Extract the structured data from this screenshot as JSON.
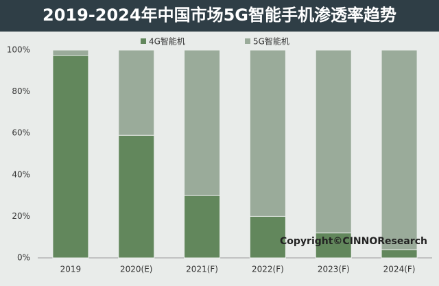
{
  "chart_data": {
    "type": "stacked-bar",
    "title": "2019-2024年中国市场5G智能手机渗透率趋势",
    "categories": [
      "2019",
      "2020(E)",
      "2021(F)",
      "2022(F)",
      "2023(F)",
      "2024(F)"
    ],
    "series": [
      {
        "name": "4G智能机",
        "color": "#62875c",
        "values": [
          97.5,
          59,
          30,
          20,
          12,
          4
        ]
      },
      {
        "name": "5G智能机",
        "color": "#9aab9a",
        "values": [
          2.5,
          41,
          70,
          80,
          88,
          96
        ]
      }
    ],
    "ylim": [
      0,
      100
    ],
    "yticks": [
      {
        "value": 0,
        "label": "0%"
      },
      {
        "value": 20,
        "label": "20%"
      },
      {
        "value": 40,
        "label": "40%"
      },
      {
        "value": 60,
        "label": "60%"
      },
      {
        "value": 80,
        "label": "80%"
      },
      {
        "value": 100,
        "label": "100%"
      }
    ],
    "annotation": "Copyright©CINNOResearch"
  }
}
